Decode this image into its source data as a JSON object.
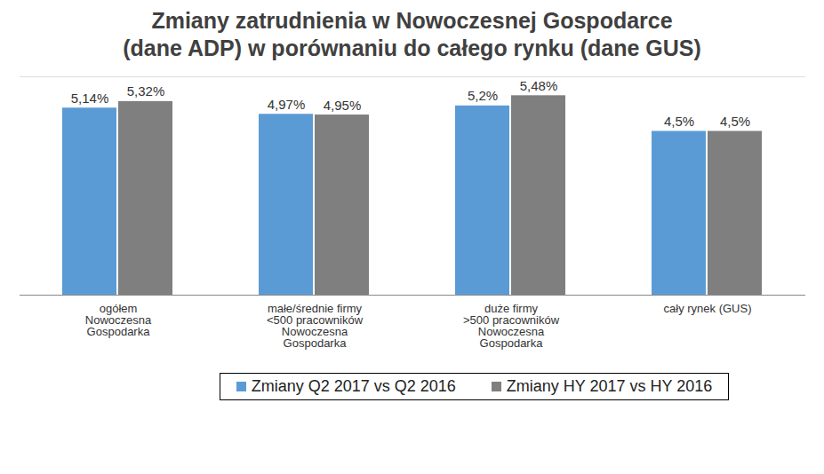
{
  "chart_data": {
    "type": "bar",
    "title": "Zmiany zatrudnienia w Nowoczesnej Gospodarce\n(dane ADP) w porównaniu do całego rynku (dane GUS)",
    "categories": [
      "ogółem\nNowoczesna\nGospodarka",
      "małe/średnie firmy\n<500 pracowników\nNowoczesna\nGospodarka",
      "duże firmy\n>500 pracowników\nNowoczesna\nGospodarka",
      "cały rynek (GUS)"
    ],
    "series": [
      {
        "name": "Zmiany Q2 2017 vs Q2 2016",
        "color": "#5b9bd5",
        "values": [
          5.14,
          4.97,
          5.2,
          4.5
        ],
        "value_labels": [
          "5,14%",
          "4,97%",
          "5,2%",
          "4,5%"
        ]
      },
      {
        "name": "Zmiany HY 2017 vs HY 2016",
        "color": "#7f7f7f",
        "values": [
          5.32,
          4.95,
          5.48,
          4.5
        ],
        "value_labels": [
          "5,32%",
          "4,95%",
          "5,48%",
          "4,5%"
        ]
      }
    ],
    "ylim": [
      0,
      6
    ],
    "data_labels": true,
    "tick_labels": "x",
    "legend": "bottom"
  }
}
